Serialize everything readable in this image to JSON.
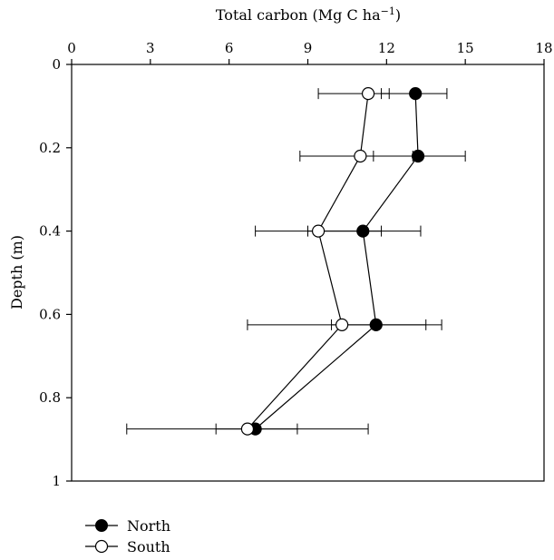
{
  "chart_data": {
    "type": "scatter",
    "orientation": "horizontal",
    "x_title_main": "Total carbon (Mg C ha",
    "x_title_sup": "−1",
    "x_title_close": ")",
    "ylabel": "Depth (m)",
    "xlim": [
      0,
      18
    ],
    "ylim": [
      0,
      1
    ],
    "y_inverted": true,
    "x_ticks": [
      "0",
      "3",
      "6",
      "9",
      "12",
      "15",
      "18"
    ],
    "y_ticks": [
      "0",
      "0.2",
      "0.4",
      "0.6",
      "0.8",
      "1"
    ],
    "grid": false,
    "legend_position": "bottom-left",
    "series": [
      {
        "name": "North",
        "marker": "filled-circle",
        "color": "#000000",
        "points": [
          {
            "depth": 0.07,
            "x": 13.1,
            "err_low": 11.8,
            "err_high": 14.3
          },
          {
            "depth": 0.22,
            "x": 13.2,
            "err_low": 11.5,
            "err_high": 15.0
          },
          {
            "depth": 0.4,
            "x": 11.1,
            "err_low": 9.0,
            "err_high": 13.3
          },
          {
            "depth": 0.625,
            "x": 11.6,
            "err_low": 9.9,
            "err_high": 14.1
          },
          {
            "depth": 0.875,
            "x": 7.0,
            "err_low": 5.5,
            "err_high": 8.6
          }
        ]
      },
      {
        "name": "South",
        "marker": "open-circle",
        "color": "#000000",
        "points": [
          {
            "depth": 0.07,
            "x": 11.3,
            "err_low": 9.4,
            "err_high": 12.1
          },
          {
            "depth": 0.22,
            "x": 11.0,
            "err_low": 8.7,
            "err_high": 13.0
          },
          {
            "depth": 0.4,
            "x": 9.4,
            "err_low": 7.0,
            "err_high": 11.8
          },
          {
            "depth": 0.625,
            "x": 10.3,
            "err_low": 6.7,
            "err_high": 13.5
          },
          {
            "depth": 0.875,
            "x": 6.7,
            "err_low": 2.1,
            "err_high": 11.3
          }
        ]
      }
    ]
  }
}
